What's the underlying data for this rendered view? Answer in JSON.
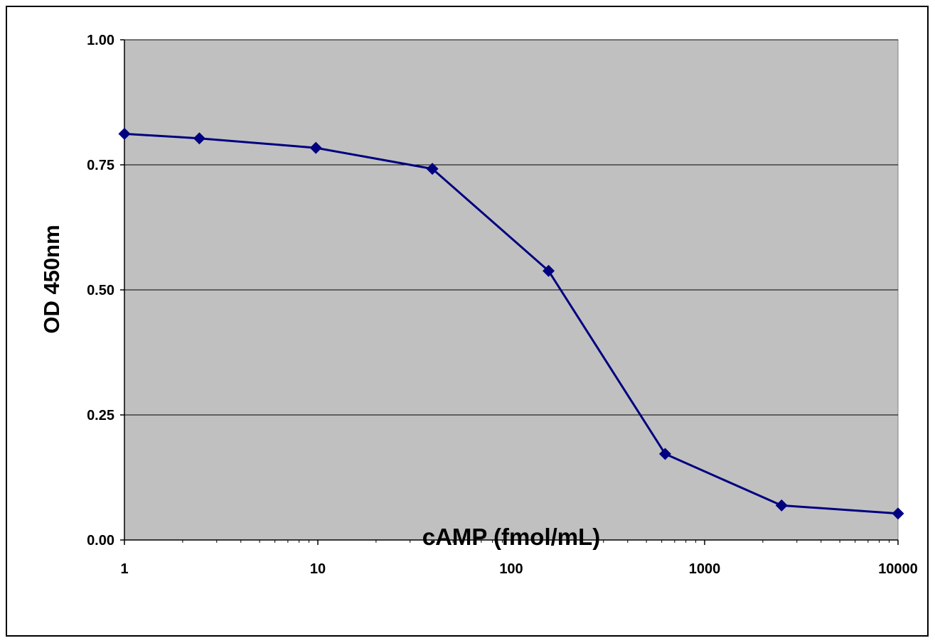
{
  "chart_data": {
    "type": "line",
    "title": "",
    "xlabel": "cAMP (fmol/mL)",
    "ylabel": "OD 450nm",
    "x_scale": "log",
    "xlim": [
      1,
      10000
    ],
    "ylim": [
      0,
      1
    ],
    "x_ticks": [
      "1",
      "10",
      "100",
      "1000",
      "10000"
    ],
    "y_ticks": [
      "0.00",
      "0.25",
      "0.50",
      "0.75",
      "1.00"
    ],
    "grid": "horizontal",
    "legend": "none",
    "series": [
      {
        "x": [
          1,
          2.44,
          9.77,
          39.1,
          156,
          625,
          2500,
          10000
        ],
        "y": [
          0.812,
          0.803,
          0.784,
          0.742,
          0.538,
          0.172,
          0.069,
          0.053
        ]
      }
    ],
    "colors": {
      "plot_background": "#c0c0c0",
      "series_line": "#000080",
      "gridline": "#000000"
    },
    "marker": "diamond-marker"
  }
}
